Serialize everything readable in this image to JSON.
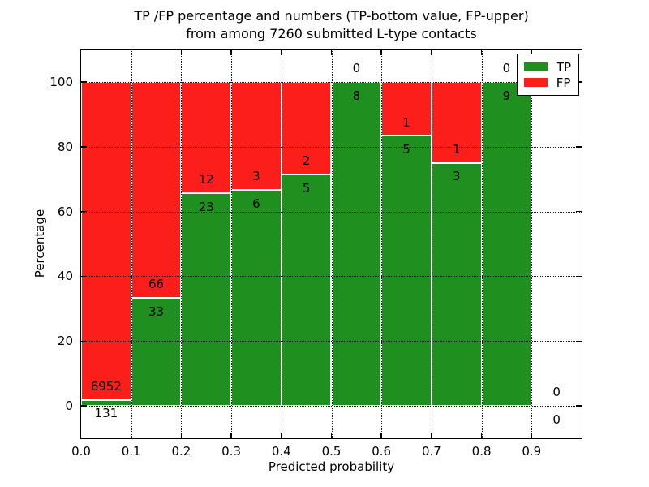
{
  "title": {
    "line1": "TP /FP percentage and numbers (TP-bottom value, FP-upper)",
    "line2": "from among 7260 submitted L-type contacts"
  },
  "axes": {
    "xlabel": "Predicted probability",
    "ylabel": "Percentage"
  },
  "legend": {
    "position": "upper right",
    "entries": [
      {
        "label": "TP",
        "color": "#1f8f1f"
      },
      {
        "label": "FP",
        "color": "#fc1e1a"
      }
    ]
  },
  "colors": {
    "tp": "#1f8f1f",
    "fp": "#fc1e1a",
    "bar_edge": "#ffffff",
    "grid": "#151515",
    "frame": "#000000",
    "background": "#ffffff",
    "text": "#000000"
  },
  "chart_data": {
    "type": "bar",
    "stacked": true,
    "normalized_to_percent": true,
    "title": "TP /FP percentage and numbers (TP-bottom value, FP-upper) from among 7260 submitted L-type contacts",
    "xlabel": "Predicted probability",
    "ylabel": "Percentage",
    "xlim": [
      0.0,
      1.0
    ],
    "ylim": [
      -10,
      110
    ],
    "xticks": [
      0.0,
      0.1,
      0.2,
      0.3,
      0.4,
      0.5,
      0.6,
      0.7,
      0.8,
      0.9
    ],
    "yticks": [
      0,
      20,
      40,
      60,
      80,
      100
    ],
    "grid": true,
    "grid_style": "dotted",
    "bin_edges": [
      0.0,
      0.1,
      0.2,
      0.3,
      0.4,
      0.5,
      0.6,
      0.7,
      0.8,
      0.9,
      1.0
    ],
    "series": [
      {
        "name": "TP",
        "color": "#1f8f1f",
        "values": [
          131,
          33,
          23,
          6,
          5,
          8,
          5,
          3,
          9,
          0
        ]
      },
      {
        "name": "FP",
        "color": "#fc1e1a",
        "values": [
          6952,
          66,
          12,
          3,
          2,
          0,
          1,
          1,
          0,
          0
        ]
      }
    ],
    "tp_percent_per_bin": [
      1.85,
      33.33,
      65.71,
      66.67,
      71.43,
      100.0,
      83.33,
      75.0,
      100.0,
      null
    ],
    "total_contacts": 7260
  }
}
